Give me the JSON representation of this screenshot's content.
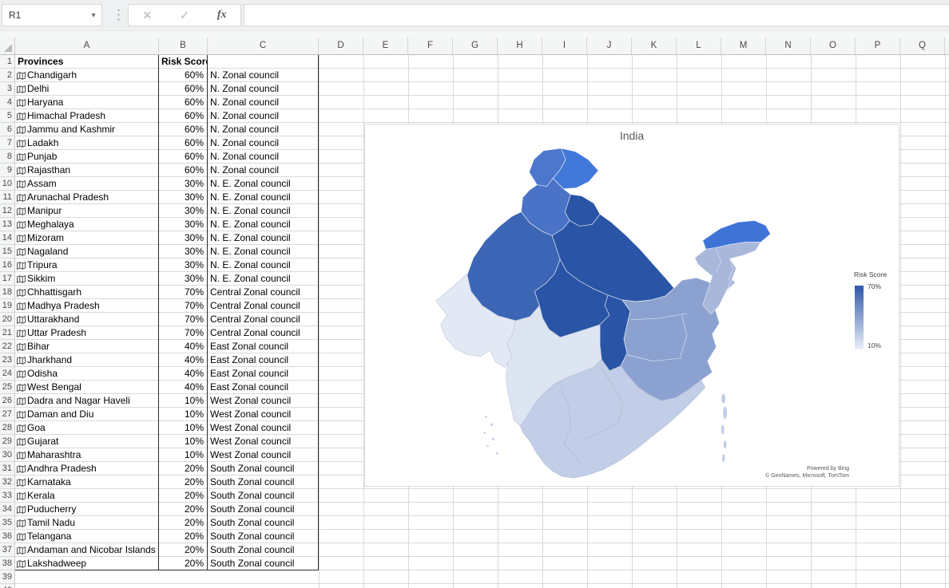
{
  "name_box": {
    "value": "R1"
  },
  "icons": {
    "dropdown": "▾",
    "handle": "⋮",
    "cancel": "✕",
    "enter": "✓",
    "fx": "fx"
  },
  "formula_bar": {
    "value": ""
  },
  "sheet": {
    "columns": [
      "A",
      "B",
      "C",
      "D",
      "E",
      "F",
      "G",
      "H",
      "I",
      "J",
      "K",
      "L",
      "M",
      "N",
      "O",
      "P",
      "Q"
    ],
    "row_count": 40
  },
  "table": {
    "header": {
      "provinces": "Provinces",
      "risk_score": "Risk Score"
    },
    "rows": [
      {
        "n": 2,
        "province": "Chandigarh",
        "risk": "60%",
        "council": "N. Zonal council"
      },
      {
        "n": 3,
        "province": "Delhi",
        "risk": "60%",
        "council": "N. Zonal council"
      },
      {
        "n": 4,
        "province": "Haryana",
        "risk": "60%",
        "council": "N. Zonal council"
      },
      {
        "n": 5,
        "province": "Himachal Pradesh",
        "risk": "60%",
        "council": "N. Zonal council"
      },
      {
        "n": 6,
        "province": "Jammu and Kashmir",
        "risk": "60%",
        "council": "N. Zonal council"
      },
      {
        "n": 7,
        "province": "Ladakh",
        "risk": "60%",
        "council": "N. Zonal council"
      },
      {
        "n": 8,
        "province": "Punjab",
        "risk": "60%",
        "council": "N. Zonal council"
      },
      {
        "n": 9,
        "province": "Rajasthan",
        "risk": "60%",
        "council": "N. Zonal council"
      },
      {
        "n": 10,
        "province": "Assam",
        "risk": "30%",
        "council": "N. E. Zonal council"
      },
      {
        "n": 11,
        "province": "Arunachal Pradesh",
        "risk": "30%",
        "council": "N. E. Zonal council"
      },
      {
        "n": 12,
        "province": "Manipur",
        "risk": "30%",
        "council": "N. E. Zonal council"
      },
      {
        "n": 13,
        "province": "Meghalaya",
        "risk": "30%",
        "council": "N. E. Zonal council"
      },
      {
        "n": 14,
        "province": "Mizoram",
        "risk": "30%",
        "council": "N. E. Zonal council"
      },
      {
        "n": 15,
        "province": "Nagaland",
        "risk": "30%",
        "council": "N. E. Zonal council"
      },
      {
        "n": 16,
        "province": "Tripura",
        "risk": "30%",
        "council": "N. E. Zonal council"
      },
      {
        "n": 17,
        "province": "Sikkim",
        "risk": "30%",
        "council": "N. E. Zonal council"
      },
      {
        "n": 18,
        "province": "Chhattisgarh",
        "risk": "70%",
        "council": "Central Zonal council"
      },
      {
        "n": 19,
        "province": "Madhya Pradesh",
        "risk": "70%",
        "council": "Central Zonal council"
      },
      {
        "n": 20,
        "province": "Uttarakhand",
        "risk": "70%",
        "council": "Central Zonal council"
      },
      {
        "n": 21,
        "province": "Uttar Pradesh",
        "risk": "70%",
        "council": "Central Zonal council"
      },
      {
        "n": 22,
        "province": "Bihar",
        "risk": "40%",
        "council": "East Zonal council"
      },
      {
        "n": 23,
        "province": "Jharkhand",
        "risk": "40%",
        "council": "East Zonal council"
      },
      {
        "n": 24,
        "province": "Odisha",
        "risk": "40%",
        "council": "East Zonal council"
      },
      {
        "n": 25,
        "province": "West Bengal",
        "risk": "40%",
        "council": "East Zonal council"
      },
      {
        "n": 26,
        "province": "Dadra and Nagar Haveli",
        "risk": "10%",
        "council": "West Zonal council"
      },
      {
        "n": 27,
        "province": "Daman and Diu",
        "risk": "10%",
        "council": "West Zonal council"
      },
      {
        "n": 28,
        "province": "Goa",
        "risk": "10%",
        "council": "West Zonal council"
      },
      {
        "n": 29,
        "province": "Gujarat",
        "risk": "10%",
        "council": "West Zonal council"
      },
      {
        "n": 30,
        "province": "Maharashtra",
        "risk": "10%",
        "council": "West Zonal council"
      },
      {
        "n": 31,
        "province": "Andhra Pradesh",
        "risk": "20%",
        "council": "South Zonal council"
      },
      {
        "n": 32,
        "province": "Karnataka",
        "risk": "20%",
        "council": "South Zonal council"
      },
      {
        "n": 33,
        "province": "Kerala",
        "risk": "20%",
        "council": "South Zonal council"
      },
      {
        "n": 34,
        "province": "Puducherry",
        "risk": "20%",
        "council": "South Zonal council"
      },
      {
        "n": 35,
        "province": "Tamil Nadu",
        "risk": "20%",
        "council": "South Zonal council"
      },
      {
        "n": 36,
        "province": "Telangana",
        "risk": "20%",
        "council": "South Zonal council"
      },
      {
        "n": 37,
        "province": "Andaman and Nicobar Islands",
        "risk": "20%",
        "council": "South Zonal council"
      },
      {
        "n": 38,
        "province": "Lakshadweep",
        "risk": "20%",
        "council": "South Zonal council"
      }
    ]
  },
  "chart": {
    "title": "India",
    "legend": {
      "title": "Risk Score",
      "max": "70%",
      "min": "10%"
    },
    "attribution": {
      "line1": "Powered by Bing",
      "line2": "© GeoNames, Microsoft, TomTom"
    },
    "colors": {
      "risk_70": "#2a55a6",
      "risk_60": "#3c66b5",
      "risk_60_band": "#4a72c6",
      "risk_60_jk": "#4c77cd",
      "risk_60_ladakh": "#4178d9",
      "risk_40": "#8ba1d0",
      "risk_30": "#a9b7db",
      "risk_30_arunachal": "#3f74d6",
      "risk_20": "#c2cde7",
      "risk_10": "#e3e8f5",
      "risk_10_mh": "#dde4f2",
      "scale_max": "#2e58a8",
      "scale_min": "#eaeef8"
    }
  },
  "chart_data": {
    "type": "map",
    "title": "India",
    "legend_title": "Risk Score",
    "scale": {
      "min": "10%",
      "max": "70%"
    },
    "zones": [
      {
        "council": "N. Zonal council",
        "risk": "60%",
        "provinces": [
          "Chandigarh",
          "Delhi",
          "Haryana",
          "Himachal Pradesh",
          "Jammu and Kashmir",
          "Ladakh",
          "Punjab",
          "Rajasthan"
        ]
      },
      {
        "council": "N. E. Zonal council",
        "risk": "30%",
        "provinces": [
          "Assam",
          "Arunachal Pradesh",
          "Manipur",
          "Meghalaya",
          "Mizoram",
          "Nagaland",
          "Tripura",
          "Sikkim"
        ]
      },
      {
        "council": "Central Zonal council",
        "risk": "70%",
        "provinces": [
          "Chhattisgarh",
          "Madhya Pradesh",
          "Uttarakhand",
          "Uttar Pradesh"
        ]
      },
      {
        "council": "East Zonal council",
        "risk": "40%",
        "provinces": [
          "Bihar",
          "Jharkhand",
          "Odisha",
          "West Bengal"
        ]
      },
      {
        "council": "West Zonal council",
        "risk": "10%",
        "provinces": [
          "Dadra and Nagar Haveli",
          "Daman and Diu",
          "Goa",
          "Gujarat",
          "Maharashtra"
        ]
      },
      {
        "council": "South Zonal council",
        "risk": "20%",
        "provinces": [
          "Andhra Pradesh",
          "Karnataka",
          "Kerala",
          "Puducherry",
          "Tamil Nadu",
          "Telangana",
          "Andaman and Nicobar Islands",
          "Lakshadweep"
        ]
      }
    ]
  }
}
